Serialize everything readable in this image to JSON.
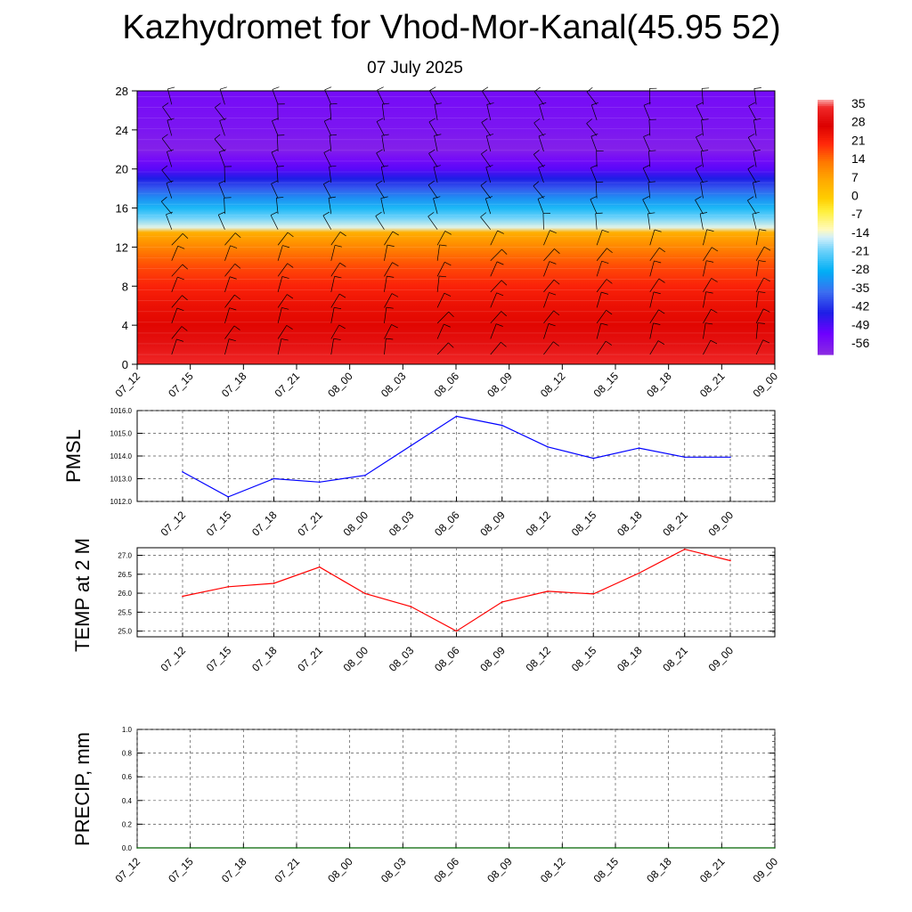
{
  "title": "Kazhydromet for Vhod-Mor-Kanal(45.95 52)",
  "subtitle": "07 July 2025",
  "chart_data": [
    {
      "type": "heatmap",
      "panel": "vertical-profile",
      "x_tick_labels": [
        "07_12",
        "07_15",
        "07_18",
        "07_21",
        "08_00",
        "08_03",
        "08_06",
        "08_09",
        "08_12",
        "08_15",
        "08_18",
        "08_21",
        "09_00"
      ],
      "y_ticks": [
        0,
        4,
        8,
        12,
        16,
        20,
        24,
        28
      ],
      "ylim": [
        0,
        28
      ],
      "colorbar_labels": [
        "35",
        "28",
        "21",
        "14",
        "7",
        "0",
        "-7",
        "-14",
        "-21",
        "-28",
        "-35",
        "-42",
        "-49",
        "-56"
      ],
      "colorbar_range": [
        -60,
        38
      ],
      "profile": {
        "levels": [
          0,
          2,
          4,
          6,
          8,
          10,
          12,
          13.5,
          14,
          15,
          16,
          17,
          18,
          19,
          20,
          21,
          22,
          24,
          26,
          28
        ],
        "temps": [
          35,
          31,
          27,
          25,
          22,
          18,
          12,
          6,
          -14,
          -20,
          -26,
          -32,
          -38,
          -44,
          -50,
          -54,
          -58,
          -56,
          -55,
          -54
        ]
      },
      "overlay": "wind barbs"
    },
    {
      "type": "line",
      "ylabel": "PMSL",
      "categories": [
        "07_12",
        "07_15",
        "07_18",
        "07_21",
        "08_00",
        "08_03",
        "08_06",
        "08_09",
        "08_12",
        "08_15",
        "08_18",
        "08_21",
        "09_00"
      ],
      "series": [
        {
          "values": [
            1013.3,
            1012.2,
            1013.0,
            1012.85,
            1013.15,
            1014.45,
            1015.75,
            1015.35,
            1014.4,
            1013.9,
            1014.35,
            1013.95,
            1013.95
          ]
        }
      ],
      "ylim": [
        1012.0,
        1016.0
      ],
      "y_ticks": [
        "1012.0",
        "1013.0",
        "1014.0",
        "1015.0",
        "1016.0"
      ],
      "color": "#0000ff",
      "grid": true
    },
    {
      "type": "line",
      "ylabel": "TEMP at 2 M",
      "categories": [
        "07_12",
        "07_15",
        "07_18",
        "07_21",
        "08_00",
        "08_03",
        "08_06",
        "08_09",
        "08_12",
        "08_15",
        "08_18",
        "08_21",
        "09_00"
      ],
      "series": [
        {
          "values": [
            25.92,
            26.17,
            26.26,
            26.69,
            25.99,
            25.65,
            25.0,
            25.77,
            26.05,
            25.98,
            26.53,
            27.16,
            26.86
          ]
        }
      ],
      "ylim": [
        24.85,
        27.2
      ],
      "y_ticks": [
        "25.0",
        "25.5",
        "26.0",
        "26.5",
        "27.0"
      ],
      "color": "#ff0000",
      "grid": true
    },
    {
      "type": "line",
      "ylabel": "PRECIP, mm",
      "categories": [
        "07_12",
        "07_15",
        "07_18",
        "07_21",
        "08_00",
        "08_03",
        "08_06",
        "08_09",
        "08_12",
        "08_15",
        "08_18",
        "08_21",
        "09_00"
      ],
      "series": [
        {
          "values": [
            0,
            0,
            0,
            0,
            0,
            0,
            0,
            0,
            0,
            0,
            0,
            0,
            0
          ]
        }
      ],
      "ylim": [
        0,
        1.0
      ],
      "y_ticks": [
        "0.0",
        "0.2",
        "0.4",
        "0.6",
        "0.8",
        "1.0"
      ],
      "color": "#006400",
      "grid": true
    }
  ]
}
